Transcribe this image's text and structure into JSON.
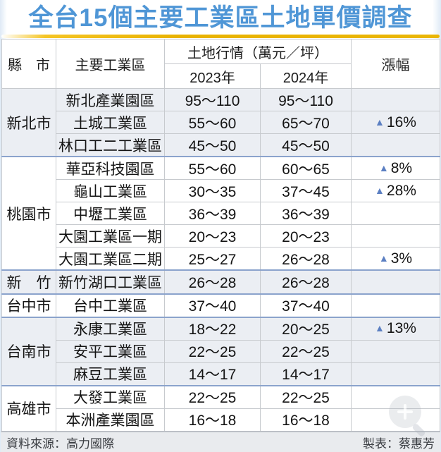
{
  "title": "全台15個主要工業區土地單價調查",
  "colors": {
    "title_blue": "#4f96d6",
    "gold": "#e9b301",
    "separator_blue": "#8ba3cc",
    "arrow_blue": "#5b7fc2",
    "shaded_bg": "#ebeef3",
    "footer_bg": "#e9ebee"
  },
  "table": {
    "header": {
      "col_city": "縣　市",
      "col_zone": "主要工業區",
      "col_price_group": "土地行情（萬元／坪）",
      "col_2023": "2023年",
      "col_2024": "2024年",
      "col_change": "漲幅"
    },
    "groups": [
      {
        "city": "新北市",
        "shaded": true,
        "rows": [
          {
            "zone": "新北產業園區",
            "y2023": "95～110",
            "y2024": "95～110",
            "change_arrow": "",
            "change_value": ""
          },
          {
            "zone": "土城工業區",
            "y2023": "55～60",
            "y2024": "65～70",
            "change_arrow": "▲",
            "change_value": "16%"
          },
          {
            "zone": "林口工二工業區",
            "y2023": "45～50",
            "y2024": "45～50",
            "change_arrow": "",
            "change_value": ""
          }
        ]
      },
      {
        "city": "桃園市",
        "shaded": false,
        "rows": [
          {
            "zone": "華亞科技園區",
            "y2023": "55～60",
            "y2024": "60～65",
            "change_arrow": "▲",
            "change_value": "8%"
          },
          {
            "zone": "龜山工業區",
            "y2023": "30～35",
            "y2024": "37～45",
            "change_arrow": "▲",
            "change_value": "28%"
          },
          {
            "zone": "中壢工業區",
            "y2023": "36～39",
            "y2024": "36～39",
            "change_arrow": "",
            "change_value": ""
          },
          {
            "zone": "大園工業區一期",
            "y2023": "20～23",
            "y2024": "20～23",
            "change_arrow": "",
            "change_value": ""
          },
          {
            "zone": "大園工業區二期",
            "y2023": "25～27",
            "y2024": "26～28",
            "change_arrow": "▲",
            "change_value": "3%"
          }
        ]
      },
      {
        "city": "新　竹",
        "shaded": true,
        "rows": [
          {
            "zone": "新竹湖口工業區",
            "y2023": "26～28",
            "y2024": "26～28",
            "change_arrow": "",
            "change_value": ""
          }
        ]
      },
      {
        "city": "台中市",
        "shaded": false,
        "rows": [
          {
            "zone": "台中工業區",
            "y2023": "37～40",
            "y2024": "37～40",
            "change_arrow": "",
            "change_value": ""
          }
        ]
      },
      {
        "city": "台南市",
        "shaded": true,
        "rows": [
          {
            "zone": "永康工業區",
            "y2023": "18～22",
            "y2024": "20～25",
            "change_arrow": "▲",
            "change_value": "13%"
          },
          {
            "zone": "安平工業區",
            "y2023": "22～25",
            "y2024": "22～25",
            "change_arrow": "",
            "change_value": ""
          },
          {
            "zone": "麻豆工業區",
            "y2023": "14～17",
            "y2024": "14～17",
            "change_arrow": "",
            "change_value": ""
          }
        ]
      },
      {
        "city": "高雄市",
        "shaded": false,
        "rows": [
          {
            "zone": "大發工業區",
            "y2023": "22～25",
            "y2024": "22～25",
            "change_arrow": "",
            "change_value": ""
          },
          {
            "zone": "本洲產業園區",
            "y2023": "16～18",
            "y2024": "16～18",
            "change_arrow": "",
            "change_value": ""
          }
        ]
      }
    ]
  },
  "footer": {
    "source": "資料來源：高力國際",
    "credit": "製表：蔡惠芳"
  },
  "chart_data": {
    "type": "table",
    "title": "全台15個主要工業區土地單價調查",
    "columns": [
      "縣市",
      "主要工業區",
      "土地行情（萬元／坪）2023年",
      "土地行情（萬元／坪）2024年",
      "漲幅"
    ],
    "rows": [
      [
        "新北市",
        "新北產業園區",
        "95～110",
        "95～110",
        ""
      ],
      [
        "新北市",
        "土城工業區",
        "55～60",
        "65～70",
        "▲16%"
      ],
      [
        "新北市",
        "林口工二工業區",
        "45～50",
        "45～50",
        ""
      ],
      [
        "桃園市",
        "華亞科技園區",
        "55～60",
        "60～65",
        "▲8%"
      ],
      [
        "桃園市",
        "龜山工業區",
        "30～35",
        "37～45",
        "▲28%"
      ],
      [
        "桃園市",
        "中壢工業區",
        "36～39",
        "36～39",
        ""
      ],
      [
        "桃園市",
        "大園工業區一期",
        "20～23",
        "20～23",
        ""
      ],
      [
        "桃園市",
        "大園工業區二期",
        "25～27",
        "26～28",
        "▲3%"
      ],
      [
        "新竹",
        "新竹湖口工業區",
        "26～28",
        "26～28",
        ""
      ],
      [
        "台中市",
        "台中工業區",
        "37～40",
        "37～40",
        ""
      ],
      [
        "台南市",
        "永康工業區",
        "18～22",
        "20～25",
        "▲13%"
      ],
      [
        "台南市",
        "安平工業區",
        "22～25",
        "22～25",
        ""
      ],
      [
        "台南市",
        "麻豆工業區",
        "14～17",
        "14～17",
        ""
      ],
      [
        "高雄市",
        "大發工業區",
        "22～25",
        "22～25",
        ""
      ],
      [
        "高雄市",
        "本洲產業園區",
        "16～18",
        "16～18",
        ""
      ]
    ]
  }
}
